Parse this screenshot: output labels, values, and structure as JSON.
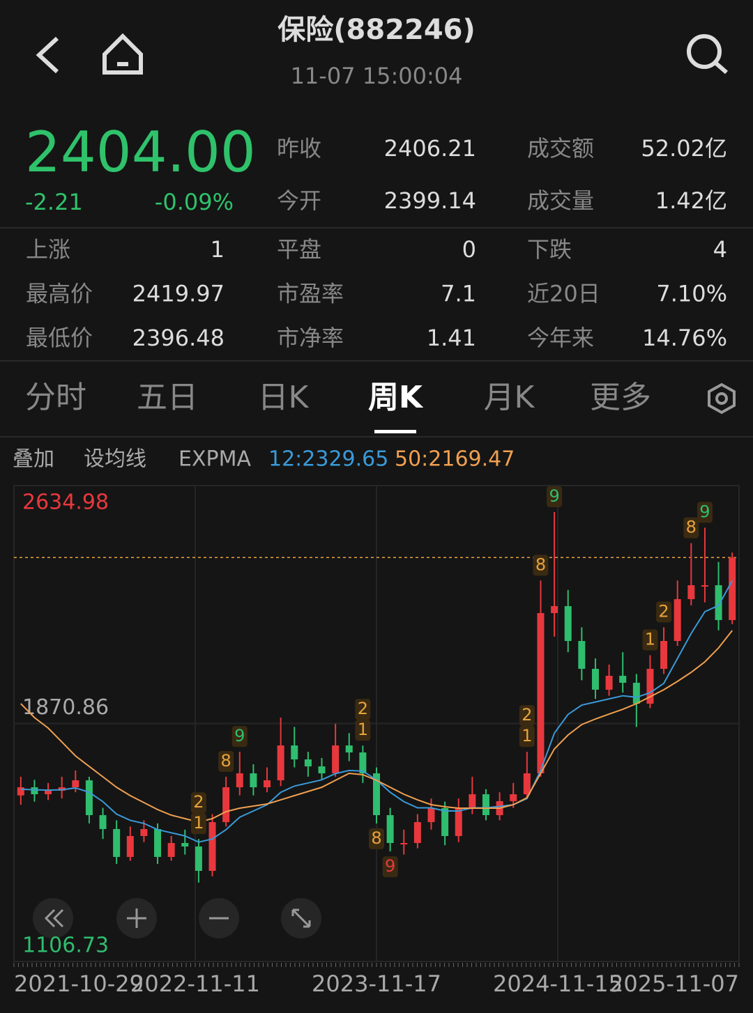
{
  "header": {
    "title": "保险(882246)",
    "time": "11-07 15:00:04"
  },
  "quote": {
    "price": "2404.00",
    "change": "-2.21",
    "change_pct": "-0.09%"
  },
  "stats": {
    "rows": [
      [
        "昨收",
        "2406.21",
        "成交额",
        "52.02亿"
      ],
      [
        "今开",
        "2399.14",
        "成交量",
        "1.42亿"
      ]
    ],
    "grid": [
      [
        "上涨",
        "1",
        "平盘",
        "0",
        "下跌",
        "4"
      ],
      [
        "最高价",
        "2419.97",
        "市盈率",
        "7.1",
        "近20日",
        "7.10%"
      ],
      [
        "最低价",
        "2396.48",
        "市净率",
        "1.41",
        "今年来",
        "14.76%"
      ]
    ]
  },
  "tabs": {
    "items": [
      "分时",
      "五日",
      "日K",
      "周K",
      "月K",
      "更多"
    ],
    "active": 3
  },
  "toolbar": [
    "叠加",
    "设均线",
    "EXPMA"
  ],
  "chart_data": {
    "type": "candlestick",
    "ylim": [
      1106.73,
      2634.98
    ],
    "yticks": [
      2634.98,
      1870.86,
      1106.73
    ],
    "up_color": "#e8383d",
    "down_color": "#2fbd6e",
    "x_labels": [
      "2021-10-29",
      "2022-11-11",
      "2023-11-17",
      "2024-11-15",
      "2025-11-07"
    ],
    "candles": {
      "open": [
        1640,
        1666.1,
        1643.7,
        1654.9,
        1666.1,
        1688.5,
        1576.6,
        1531.9,
        1442.4,
        1509.5,
        1531.9,
        1442.4,
        1487.1,
        1475.9,
        1397.6,
        1554.2,
        1666.1,
        1710.9,
        1666.1,
        1688.5,
        1800.4,
        1755.6,
        1733.2,
        1710.9,
        1800.4,
        1778.0,
        1710.9,
        1576.6,
        1487.1,
        1487.1,
        1554.2,
        1599.0,
        1509.5,
        1599.0,
        1643.7,
        1576.6,
        1621.4,
        1643.7,
        1710.9,
        2225.5,
        2247.9,
        2136.0,
        2046.5,
        1979.4,
        2024.1,
        2001.8,
        1934.6,
        2046.5,
        2136.0,
        2270.3,
        2315.0,
        2315.0,
        2203.1
      ],
      "high": [
        1700,
        1690,
        1680,
        1700,
        1720,
        1700,
        1600,
        1560,
        1540,
        1560,
        1550,
        1510,
        1530,
        1500,
        1580,
        1700,
        1780,
        1740,
        1730,
        1890,
        1860,
        1780,
        1760,
        1870,
        1840,
        1800,
        1730,
        1600,
        1530,
        1580,
        1630,
        1620,
        1630,
        1700,
        1660,
        1650,
        1680,
        1780,
        2330,
        2550,
        2300,
        2180,
        2080,
        2060,
        2100,
        2030,
        2090,
        2180,
        2330,
        2450,
        2500,
        2390,
        2420
      ],
      "low": [
        1610,
        1620,
        1625,
        1630,
        1650,
        1550,
        1500,
        1420,
        1430,
        1490,
        1420,
        1430,
        1450,
        1360,
        1380,
        1540,
        1640,
        1640,
        1650,
        1670,
        1730,
        1700,
        1690,
        1700,
        1750,
        1680,
        1550,
        1460,
        1450,
        1470,
        1530,
        1480,
        1490,
        1580,
        1560,
        1560,
        1600,
        1630,
        1700,
        2150,
        2100,
        2010,
        1950,
        1960,
        1970,
        1860,
        1920,
        2030,
        2120,
        2250,
        2260,
        2170,
        2190
      ],
      "close": [
        1666.1,
        1643.7,
        1654.9,
        1666.1,
        1688.5,
        1576.6,
        1531.9,
        1442.4,
        1509.5,
        1531.9,
        1442.4,
        1487.1,
        1475.9,
        1397.6,
        1554.2,
        1666.1,
        1710.9,
        1666.1,
        1688.5,
        1800.4,
        1755.6,
        1733.2,
        1710.9,
        1800.4,
        1778.0,
        1710.9,
        1576.6,
        1487.1,
        1487.1,
        1554.2,
        1599.0,
        1509.5,
        1599.0,
        1643.7,
        1576.6,
        1621.4,
        1643.7,
        1710.9,
        2225.5,
        2247.9,
        2136.0,
        2046.5,
        1979.4,
        2024.1,
        2001.8,
        1934.6,
        2046.5,
        2136.0,
        2270.3,
        2315.0,
        2315.0,
        2203.1,
        2404.0
      ]
    },
    "series": [
      {
        "label": "12:2329.65",
        "color": "#3a9ad9",
        "values": [
          1660,
          1658,
          1657,
          1658,
          1664,
          1650,
          1620,
          1580,
          1560,
          1550,
          1530,
          1520,
          1510,
          1490,
          1500,
          1530,
          1570,
          1590,
          1610,
          1650,
          1670,
          1680,
          1690,
          1710,
          1720,
          1718,
          1690,
          1650,
          1620,
          1600,
          1600,
          1590,
          1590,
          1600,
          1600,
          1605,
          1610,
          1630,
          1720,
          1840,
          1900,
          1930,
          1940,
          1950,
          1960,
          1955,
          1970,
          2000,
          2080,
          2160,
          2230,
          2250,
          2329.65
        ]
      },
      {
        "label": "50:2169.47",
        "color": "#f0a050",
        "values": [
          1934.6,
          1889.9,
          1856.3,
          1811.6,
          1766.8,
          1733.2,
          1699.7,
          1666.1,
          1639.3,
          1616.9,
          1594.5,
          1576.6,
          1565.4,
          1554.2,
          1565.4,
          1587.8,
          1599.0,
          1605.7,
          1612.4,
          1625.8,
          1639.3,
          1652.7,
          1666.1,
          1688.5,
          1710.9,
          1706.4,
          1688.5,
          1666.1,
          1643.7,
          1625.8,
          1610.2,
          1603.5,
          1599.0,
          1599.0,
          1599.0,
          1599.0,
          1610.2,
          1632.6,
          1710.9,
          1789.2,
          1833.9,
          1867.5,
          1885.4,
          1901.1,
          1916.7,
          1934.6,
          1957.0,
          1979.4,
          2006.2,
          2035.3,
          2068.9,
          2113.6,
          2169.47
        ]
      }
    ],
    "signals": [
      {
        "text": "1",
        "candle": 13,
        "color": "#e8a33d",
        "side": "above"
      },
      {
        "text": "2",
        "candle": 13,
        "color": "#e8a33d",
        "side": "above"
      },
      {
        "text": "8",
        "candle": 15,
        "color": "#e8a33d",
        "side": "above"
      },
      {
        "text": "9",
        "candle": 16,
        "color": "#2fbd6e",
        "side": "above"
      },
      {
        "text": "1",
        "candle": 25,
        "color": "#e8a33d",
        "side": "above"
      },
      {
        "text": "2",
        "candle": 25,
        "color": "#e8a33d",
        "side": "above"
      },
      {
        "text": "8",
        "candle": 26,
        "color": "#e8a33d",
        "side": "below"
      },
      {
        "text": "9",
        "candle": 27,
        "color": "#e8383d",
        "side": "below"
      },
      {
        "text": "1",
        "candle": 37,
        "color": "#e8a33d",
        "side": "above"
      },
      {
        "text": "2",
        "candle": 37,
        "color": "#e8a33d",
        "side": "above"
      },
      {
        "text": "8",
        "candle": 38,
        "color": "#e8a33d",
        "side": "above"
      },
      {
        "text": "9",
        "candle": 39,
        "color": "#2fbd6e",
        "side": "above"
      },
      {
        "text": "1",
        "candle": 46,
        "color": "#e8a33d",
        "side": "above"
      },
      {
        "text": "2",
        "candle": 47,
        "color": "#e8a33d",
        "side": "above"
      },
      {
        "text": "8",
        "candle": 49,
        "color": "#e8a33d",
        "side": "above"
      },
      {
        "text": "9",
        "candle": 50,
        "color": "#2fbd6e",
        "side": "above"
      }
    ]
  }
}
